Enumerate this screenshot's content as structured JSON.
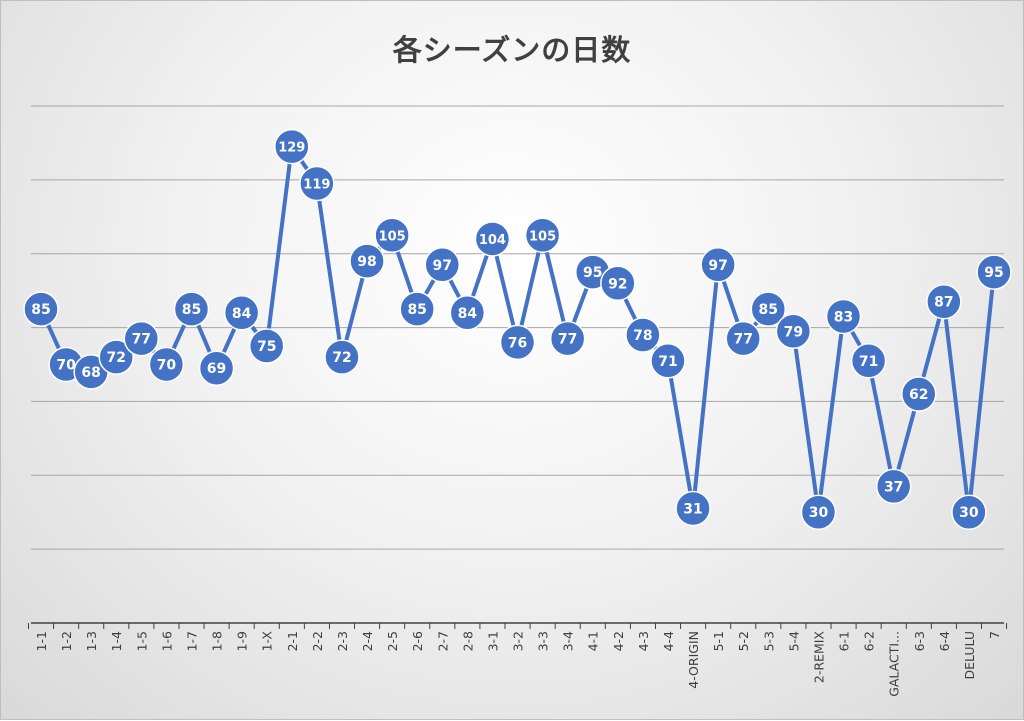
{
  "chart_data": {
    "type": "line",
    "title": "各シーズンの日数",
    "xlabel": "",
    "ylabel": "",
    "ylim": [
      0,
      140
    ],
    "grid": true,
    "y_axis_labels_shown": false,
    "marker": "circle-with-data-label",
    "categories": [
      "1-1",
      "1-2",
      "1-3",
      "1-4",
      "1-5",
      "1-6",
      "1-7",
      "1-8",
      "1-9",
      "1-X",
      "2-1",
      "2-2",
      "2-3",
      "2-4",
      "2-5",
      "2-6",
      "2-7",
      "2-8",
      "3-1",
      "3-2",
      "3-3",
      "3-4",
      "4-1",
      "4-2",
      "4-3",
      "4-4",
      "4-ORIGIN",
      "5-1",
      "5-2",
      "5-3",
      "5-4",
      "2-REMIX",
      "6-1",
      "6-2",
      "GALACTI...",
      "6-3",
      "6-4",
      "DELULU",
      "7"
    ],
    "series": [
      {
        "values": [
          85,
          70,
          68,
          72,
          77,
          70,
          85,
          69,
          84,
          75,
          129,
          119,
          72,
          98,
          105,
          85,
          97,
          84,
          104,
          76,
          105,
          77,
          95,
          92,
          78,
          71,
          31,
          97,
          77,
          85,
          79,
          30,
          83,
          71,
          37,
          62,
          87,
          30,
          95
        ]
      }
    ]
  },
  "colors": {
    "line": "#4472C4",
    "marker_fill": "#4472C4",
    "marker_stroke": "#ffffff",
    "gridline": "#a6a6a6",
    "axis": "#404040",
    "tick_label": "#404040",
    "title": "#404040"
  }
}
